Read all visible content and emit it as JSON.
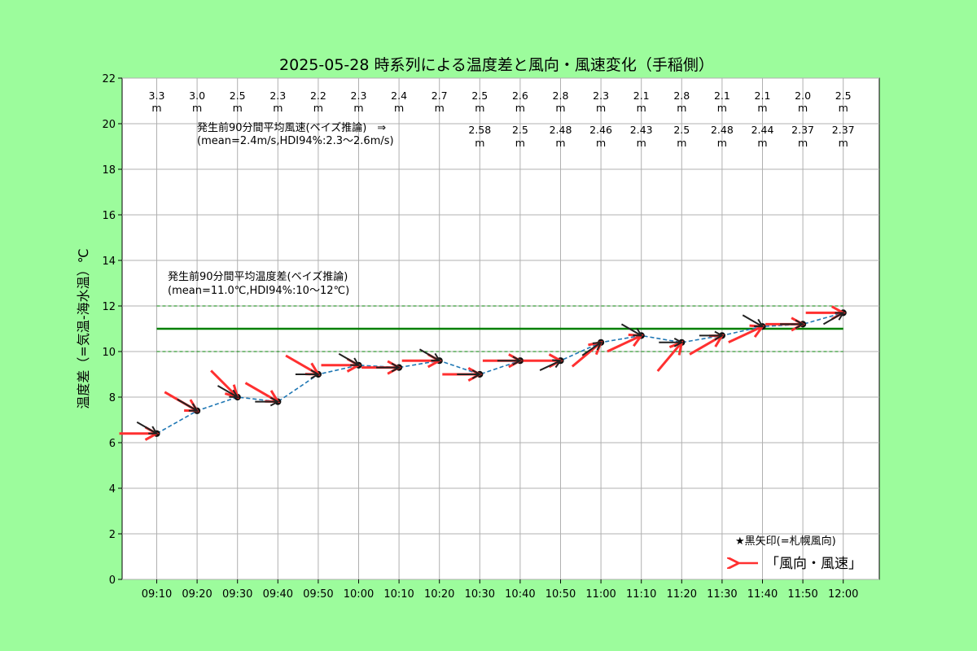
{
  "chart_data": {
    "type": "line",
    "title": "2025-05-28 時系列による温度差と風向・風速変化（手稲側）",
    "ylabel": "温度差（=気温-海水温）℃",
    "ylim": [
      0,
      22
    ],
    "yticks": [
      0,
      2,
      4,
      6,
      8,
      10,
      12,
      14,
      16,
      18,
      20,
      22
    ],
    "grid": true,
    "categories": [
      "09:10",
      "09:20",
      "09:30",
      "09:40",
      "09:50",
      "10:00",
      "10:10",
      "10:20",
      "10:30",
      "10:40",
      "10:50",
      "11:00",
      "11:10",
      "11:20",
      "11:30",
      "11:40",
      "11:50",
      "12:00"
    ],
    "series": [
      {
        "values": [
          6.4,
          7.4,
          8.0,
          7.8,
          9.0,
          9.4,
          9.3,
          9.6,
          9.0,
          9.6,
          9.6,
          10.4,
          10.7,
          10.4,
          10.7,
          11.1,
          11.2,
          11.7
        ],
        "color": "#1f77b4",
        "style": "dashed"
      }
    ],
    "wind_speed_observed": {
      "values": [
        "3.3",
        "3.0",
        "2.5",
        "2.3",
        "2.2",
        "2.3",
        "2.4",
        "2.7",
        "2.5",
        "2.6",
        "2.8",
        "2.3",
        "2.1",
        "2.8",
        "2.1",
        "2.1",
        "2.0",
        "2.5"
      ],
      "unit": "m"
    },
    "wind_speed_predicted": {
      "categories": [
        "10:30",
        "10:40",
        "10:50",
        "11:00",
        "11:10",
        "11:20",
        "11:30",
        "11:40",
        "11:50",
        "12:00"
      ],
      "values": [
        "2.58",
        "2.5",
        "2.48",
        "2.46",
        "2.43",
        "2.5",
        "2.48",
        "2.44",
        "2.37",
        "2.37"
      ],
      "unit": "m"
    },
    "red_arrow_direction_deg": [
      270,
      300,
      315,
      300,
      300,
      270,
      270,
      270,
      270,
      270,
      270,
      230,
      245,
      220,
      240,
      245,
      270,
      270
    ],
    "black_arrow_direction_deg": [
      300,
      300,
      300,
      270,
      270,
      300,
      270,
      300,
      270,
      270,
      245,
      235,
      300,
      270,
      270,
      300,
      270,
      240
    ],
    "mean_temp_diff": {
      "mean": 11.0,
      "hdi_low": 10,
      "hdi_high": 12,
      "label_line1": "発生前90分間平均温度差(ベイズ推論)",
      "label_line2": "(mean=11.0℃,HDI94%:10～12℃)",
      "color": "#008000"
    },
    "mean_wind_label": {
      "line1": "発生前90分間平均風速(ベイズ推論)　⇒",
      "line2": "(mean=2.4m/s,HDI94%:2.3～2.6m/s)"
    },
    "legend": {
      "placement": "lower-right",
      "note": "★黒矢印(=札幌風向)",
      "entry": "「風向・風速」"
    },
    "colors": {
      "background": "#9cfc9c",
      "plot_background": "#ffffff",
      "red_arrow": "#ff3030",
      "black_arrow": "#222222",
      "grid": "#b0b0b0"
    }
  }
}
